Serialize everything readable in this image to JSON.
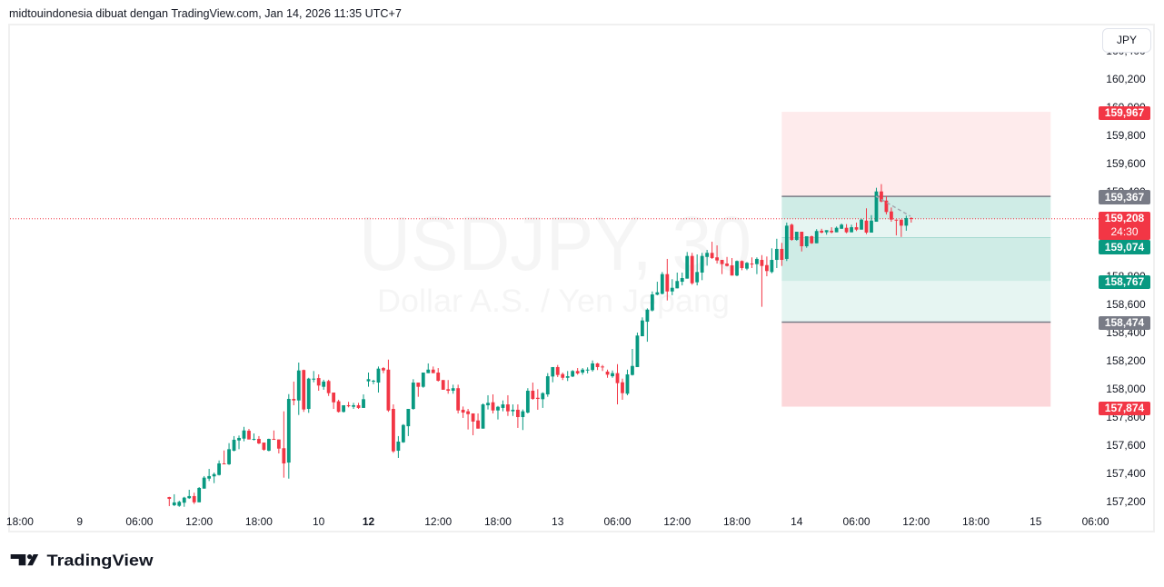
{
  "header": {
    "attribution": "midtouindonesia dibuat dengan TradingView.com, Jan 14, 2026 11:35 UTC+7"
  },
  "chart": {
    "watermark": {
      "symbol": "USDJPY, 30",
      "description": "Dollar A.S. / Yen Jepang"
    },
    "price_axis": {
      "currency_button": "JPY",
      "badges": [
        {
          "label": "159,967",
          "kind": "short-stop-loss",
          "color": "#f23645"
        },
        {
          "label": "159,367",
          "kind": "short-entry",
          "color": "#787b86"
        },
        {
          "label": "159,208",
          "sub": "24:30",
          "kind": "last-price",
          "color": "#f23645"
        },
        {
          "label": "159,074",
          "kind": "long-take-profit",
          "color": "#089981"
        },
        {
          "label": "158,767",
          "kind": "short-take-profit",
          "color": "#089981"
        },
        {
          "label": "158,474",
          "kind": "long-entry",
          "color": "#787b86"
        },
        {
          "label": "157,874",
          "kind": "long-stop-loss",
          "color": "#f23645"
        }
      ]
    }
  },
  "footer": {
    "logo_text": "TradingView"
  },
  "chart_data": {
    "type": "candlestick",
    "title": "USDJPY, 30",
    "subtitle": "Dollar A.S. / Yen Jepang",
    "xlabel": "",
    "ylabel": "JPY",
    "ylim": [
      157.168,
      160.581
    ],
    "grid": false,
    "last_price": 159.208,
    "last_price_label": "159,208",
    "bar_countdown": "24:30",
    "colors": {
      "up": "#089981",
      "down": "#f23645",
      "last_price_line": "#f23645",
      "entry_line": "#787b86",
      "trend_line": "#a3a6af",
      "watermark": "#131722"
    },
    "y_ticks": [
      {
        "value": 160.4,
        "label": "160,400"
      },
      {
        "value": 160.2,
        "label": "160,200"
      },
      {
        "value": 160.0,
        "label": "160,000"
      },
      {
        "value": 159.8,
        "label": "159,800"
      },
      {
        "value": 159.6,
        "label": "159,600"
      },
      {
        "value": 159.4,
        "label": "159,400"
      },
      {
        "value": 159.2,
        "label": "159,200"
      },
      {
        "value": 159.0,
        "label": "159,000"
      },
      {
        "value": 158.8,
        "label": "158,800"
      },
      {
        "value": 158.6,
        "label": "158,600"
      },
      {
        "value": 158.4,
        "label": "158,400"
      },
      {
        "value": 158.2,
        "label": "158,200"
      },
      {
        "value": 158.0,
        "label": "158,000"
      },
      {
        "value": 157.8,
        "label": "157,800"
      },
      {
        "value": 157.6,
        "label": "157,600"
      },
      {
        "value": 157.4,
        "label": "157,400"
      },
      {
        "value": 157.2,
        "label": "157,200"
      }
    ],
    "x_tick_labels": [
      {
        "text": "18:00",
        "bar": -30
      },
      {
        "text": "9",
        "bar": -18
      },
      {
        "text": "06:00",
        "bar": -6
      },
      {
        "text": "12:00",
        "bar": 6
      },
      {
        "text": "18:00",
        "bar": 18
      },
      {
        "text": "10",
        "bar": 30
      },
      {
        "text": "12",
        "bar": 40,
        "bold": true
      },
      {
        "text": "12:00",
        "bar": 54
      },
      {
        "text": "18:00",
        "bar": 66
      },
      {
        "text": "13",
        "bar": 78
      },
      {
        "text": "06:00",
        "bar": 90
      },
      {
        "text": "12:00",
        "bar": 102
      },
      {
        "text": "18:00",
        "bar": 114
      },
      {
        "text": "14",
        "bar": 126
      },
      {
        "text": "06:00",
        "bar": 138
      },
      {
        "text": "12:00",
        "bar": 150
      },
      {
        "text": "18:00",
        "bar": 162
      },
      {
        "text": "15",
        "bar": 174
      },
      {
        "text": "06:00",
        "bar": 186
      }
    ],
    "annotations": {
      "position_tools": [
        {
          "side": "short",
          "entry": 159.367,
          "stop_loss": 159.967,
          "take_profit": 158.767,
          "start_bar": 123,
          "end_bar": 177,
          "zones": [
            {
              "name": "short-stop-zone",
              "from": 159.367,
              "to": 159.967,
              "fill": "rgba(242,54,69,0.10)"
            },
            {
              "name": "short-target-zone",
              "from": 158.767,
              "to": 159.367,
              "fill": "rgba(8,153,129,0.10)"
            },
            {
              "name": "short-open-pnl-zone",
              "from": 159.208,
              "to": 159.367,
              "fill": "rgba(8,153,129,0.10)"
            }
          ]
        },
        {
          "side": "long",
          "entry": 158.474,
          "stop_loss": 157.874,
          "take_profit": 159.074,
          "start_bar": 123,
          "end_bar": 177,
          "zones": [
            {
              "name": "long-target-zone",
              "from": 158.474,
              "to": 159.074,
              "fill": "rgba(8,153,129,0.10)"
            },
            {
              "name": "long-stop-zone",
              "from": 157.874,
              "to": 158.474,
              "fill": "rgba(242,54,69,0.20)"
            }
          ],
          "target_edge_color": "rgba(8,153,129,0.25)"
        }
      ],
      "trend_line": {
        "style": "dashed",
        "points": [
          [
            141.9,
            159.368
          ],
          [
            148.85,
            159.226
          ]
        ]
      }
    },
    "candles_format": [
      "open",
      "high",
      "low",
      "close"
    ],
    "candles": [
      [
        157.232,
        157.234,
        157.168,
        157.219
      ],
      [
        157.174,
        157.252,
        157.168,
        157.194
      ],
      [
        157.17,
        157.206,
        157.163,
        157.198
      ],
      [
        157.192,
        157.234,
        157.163,
        157.228
      ],
      [
        157.224,
        157.284,
        157.219,
        157.239
      ],
      [
        157.239,
        157.263,
        157.183,
        157.195
      ],
      [
        157.195,
        157.303,
        157.195,
        157.297
      ],
      [
        157.292,
        157.381,
        157.292,
        157.37
      ],
      [
        157.363,
        157.432,
        157.346,
        157.381
      ],
      [
        157.379,
        157.406,
        157.331,
        157.395
      ],
      [
        157.389,
        157.492,
        157.385,
        157.471
      ],
      [
        157.471,
        157.563,
        157.466,
        157.466
      ],
      [
        157.465,
        157.615,
        157.46,
        157.572
      ],
      [
        157.561,
        157.665,
        157.557,
        157.639
      ],
      [
        157.634,
        157.669,
        157.572,
        157.652
      ],
      [
        157.647,
        157.731,
        157.628,
        157.705
      ],
      [
        157.703,
        157.716,
        157.641,
        157.641
      ],
      [
        157.641,
        157.684,
        157.634,
        157.645
      ],
      [
        157.645,
        157.665,
        157.608,
        157.613
      ],
      [
        157.619,
        157.619,
        157.561,
        157.568
      ],
      [
        157.561,
        157.647,
        157.557,
        157.645
      ],
      [
        157.645,
        157.705,
        157.641,
        157.641
      ],
      [
        157.641,
        157.641,
        157.542,
        157.576
      ],
      [
        157.579,
        157.841,
        157.37,
        157.471
      ],
      [
        157.477,
        157.963,
        157.363,
        157.929
      ],
      [
        157.929,
        158.052,
        157.884,
        157.918
      ],
      [
        157.918,
        158.187,
        157.815,
        158.131
      ],
      [
        158.134,
        158.137,
        157.837,
        157.854
      ],
      [
        157.858,
        158.079,
        157.83,
        158.073
      ],
      [
        158.066,
        158.127,
        158.047,
        158.073
      ],
      [
        158.077,
        158.103,
        157.987,
        158.024
      ],
      [
        158.015,
        158.065,
        157.994,
        158.052
      ],
      [
        158.056,
        158.065,
        157.95,
        157.97
      ],
      [
        157.974,
        157.974,
        157.858,
        157.905
      ],
      [
        157.912,
        157.923,
        157.832,
        157.837
      ],
      [
        157.837,
        157.884,
        157.832,
        157.884
      ],
      [
        157.884,
        157.908,
        157.869,
        157.877
      ],
      [
        157.873,
        157.901,
        157.858,
        157.884
      ],
      [
        157.884,
        157.901,
        157.858,
        157.865
      ],
      [
        157.865,
        157.961,
        157.865,
        157.927
      ],
      [
        158.054,
        158.116,
        158.015,
        158.069
      ],
      [
        158.054,
        158.065,
        158.034,
        158.058
      ],
      [
        158.045,
        158.159,
        157.974,
        158.144
      ],
      [
        158.148,
        158.155,
        158.112,
        158.131
      ],
      [
        158.137,
        158.208,
        157.837,
        157.847
      ],
      [
        157.858,
        157.89,
        157.546,
        157.557
      ],
      [
        157.561,
        157.665,
        157.51,
        157.626
      ],
      [
        157.621,
        157.75,
        157.617,
        157.744
      ],
      [
        157.735,
        157.858,
        157.665,
        157.858
      ],
      [
        157.858,
        158.069,
        157.852,
        158.045
      ],
      [
        158.045,
        158.045,
        157.944,
        158.015
      ],
      [
        158.015,
        158.116,
        158.008,
        158.116
      ],
      [
        158.112,
        158.181,
        158.112,
        158.137
      ],
      [
        158.137,
        158.159,
        158.112,
        158.112
      ],
      [
        158.116,
        158.148,
        158.052,
        158.058
      ],
      [
        158.063,
        158.063,
        157.994,
        157.994
      ],
      [
        157.998,
        158.063,
        157.966,
        157.987
      ],
      [
        157.987,
        158.03,
        157.966,
        158.005
      ],
      [
        158.005,
        158.03,
        157.826,
        157.847
      ],
      [
        157.852,
        157.875,
        157.794,
        157.832
      ],
      [
        157.841,
        157.858,
        157.712,
        157.821
      ],
      [
        157.826,
        157.826,
        157.671,
        157.768
      ],
      [
        157.776,
        157.826,
        157.718,
        157.718
      ],
      [
        157.718,
        157.897,
        157.718,
        157.89
      ],
      [
        157.884,
        157.955,
        157.854,
        157.901
      ],
      [
        157.905,
        157.961,
        157.826,
        157.847
      ],
      [
        157.847,
        157.879,
        157.783,
        157.873
      ],
      [
        157.865,
        157.918,
        157.841,
        157.89
      ],
      [
        157.89,
        157.955,
        157.808,
        157.841
      ],
      [
        157.841,
        157.89,
        157.808,
        157.852
      ],
      [
        157.852,
        157.89,
        157.723,
        157.8
      ],
      [
        157.8,
        157.854,
        157.708,
        157.841
      ],
      [
        157.832,
        158.005,
        157.826,
        157.987
      ],
      [
        157.987,
        158.045,
        157.923,
        157.929
      ],
      [
        157.937,
        157.998,
        157.852,
        157.929
      ],
      [
        157.927,
        157.976,
        157.865,
        157.97
      ],
      [
        157.961,
        158.112,
        157.944,
        158.09
      ],
      [
        158.088,
        158.155,
        158.047,
        158.155
      ],
      [
        158.155,
        158.17,
        158.084,
        158.099
      ],
      [
        158.105,
        158.116,
        158.063,
        158.079
      ],
      [
        158.079,
        158.127,
        158.056,
        158.09
      ],
      [
        158.088,
        158.134,
        158.084,
        158.127
      ],
      [
        158.127,
        158.148,
        158.101,
        158.11
      ],
      [
        158.116,
        158.148,
        158.101,
        158.137
      ],
      [
        158.134,
        158.153,
        158.11,
        158.137
      ],
      [
        158.134,
        158.202,
        158.123,
        158.181
      ],
      [
        158.181,
        158.185,
        158.134,
        158.155
      ],
      [
        158.159,
        158.17,
        158.127,
        158.155
      ],
      [
        158.123,
        158.137,
        158.079,
        158.101
      ],
      [
        158.09,
        158.131,
        158.079,
        158.112
      ],
      [
        158.112,
        158.176,
        157.89,
        158.041
      ],
      [
        158.047,
        158.073,
        157.923,
        157.97
      ],
      [
        157.966,
        158.137,
        157.955,
        158.103
      ],
      [
        158.099,
        158.284,
        158.095,
        158.163
      ],
      [
        158.155,
        158.4,
        158.155,
        158.379
      ],
      [
        158.374,
        158.508,
        158.374,
        158.486
      ],
      [
        158.477,
        158.572,
        158.335,
        158.563
      ],
      [
        158.557,
        158.692,
        158.55,
        158.671
      ],
      [
        158.669,
        158.761,
        158.665,
        158.686
      ],
      [
        158.675,
        158.83,
        158.671,
        158.815
      ],
      [
        158.815,
        158.923,
        158.628,
        158.692
      ],
      [
        158.692,
        158.779,
        158.665,
        158.718
      ],
      [
        158.714,
        158.826,
        158.714,
        158.766
      ],
      [
        158.761,
        158.826,
        158.735,
        158.787
      ],
      [
        158.783,
        158.972,
        158.783,
        158.944
      ],
      [
        158.944,
        158.966,
        158.74,
        158.75
      ],
      [
        158.757,
        158.955,
        158.735,
        158.83
      ],
      [
        158.826,
        158.966,
        158.772,
        158.944
      ],
      [
        158.937,
        158.987,
        158.875,
        158.966
      ],
      [
        158.966,
        159.045,
        158.923,
        158.929
      ],
      [
        158.934,
        159.019,
        158.89,
        158.912
      ],
      [
        158.916,
        158.916,
        158.815,
        158.886
      ],
      [
        158.89,
        158.937,
        158.869,
        158.873
      ],
      [
        158.877,
        158.929,
        158.805,
        158.805
      ],
      [
        158.805,
        158.912,
        158.8,
        158.908
      ],
      [
        158.908,
        158.912,
        158.843,
        158.858
      ],
      [
        158.854,
        158.901,
        158.843,
        158.895
      ],
      [
        158.89,
        158.934,
        158.858,
        158.886
      ],
      [
        158.886,
        158.934,
        158.815,
        158.923
      ],
      [
        158.916,
        158.95,
        158.583,
        158.873
      ],
      [
        158.879,
        158.94,
        158.8,
        158.837
      ],
      [
        158.83,
        158.998,
        158.821,
        158.916
      ],
      [
        158.916,
        159.066,
        158.858,
        158.994
      ],
      [
        158.994,
        159.037,
        158.873,
        158.916
      ],
      [
        158.923,
        159.181,
        158.908,
        159.159
      ],
      [
        159.166,
        159.174,
        159.052,
        159.058
      ],
      [
        159.058,
        159.116,
        159.052,
        159.116
      ],
      [
        159.116,
        159.116,
        158.976,
        159.013
      ],
      [
        159.013,
        159.084,
        159.002,
        159.084
      ],
      [
        159.084,
        159.088,
        159.03,
        159.034
      ],
      [
        159.034,
        159.134,
        159.034,
        159.121
      ],
      [
        159.123,
        159.137,
        159.105,
        159.11
      ],
      [
        159.112,
        159.127,
        159.095,
        159.127
      ],
      [
        159.123,
        159.148,
        159.105,
        159.112
      ],
      [
        159.112,
        159.153,
        159.112,
        159.144
      ],
      [
        159.137,
        159.174,
        159.137,
        159.166
      ],
      [
        159.144,
        159.17,
        159.105,
        159.112
      ],
      [
        159.112,
        159.166,
        159.112,
        159.148
      ],
      [
        159.148,
        159.181,
        159.121,
        159.131
      ],
      [
        159.131,
        159.208,
        159.131,
        159.202
      ],
      [
        159.195,
        159.282,
        159.099,
        159.11
      ],
      [
        159.11,
        159.234,
        159.11,
        159.195
      ],
      [
        159.187,
        159.428,
        159.187,
        159.402
      ],
      [
        159.402,
        159.454,
        159.325,
        159.331
      ],
      [
        159.337,
        159.368,
        159.239,
        159.256
      ],
      [
        159.26,
        159.288,
        159.187,
        159.202
      ],
      [
        159.202,
        159.202,
        159.09,
        159.195
      ],
      [
        159.202,
        159.202,
        159.079,
        159.159
      ],
      [
        159.159,
        159.23,
        159.123,
        159.213
      ],
      [
        159.213,
        159.219,
        159.181,
        159.208
      ]
    ]
  }
}
